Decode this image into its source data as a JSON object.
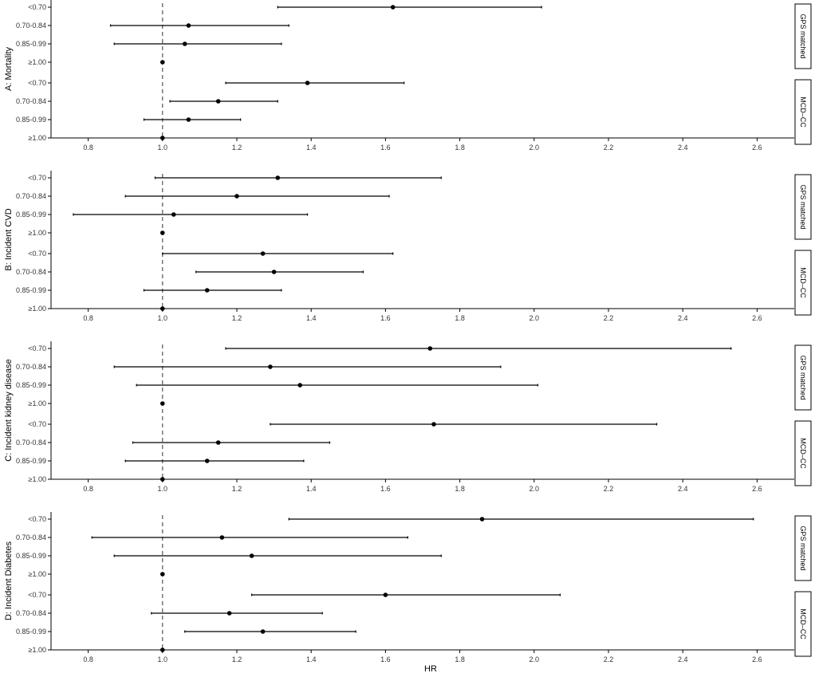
{
  "chart_data": {
    "type": "forest",
    "x_label": "HR",
    "x_range": [
      0.7,
      2.7
    ],
    "x_ticks": [
      "0.8",
      "1.0",
      "1.2",
      "1.4",
      "1.6",
      "1.8",
      "2.0",
      "2.2",
      "2.4",
      "2.6"
    ],
    "reference_line": 1.0,
    "categories": [
      "<0.70",
      "0.70-0.84",
      "0.85-0.99",
      "≥1.00"
    ],
    "panels": [
      {
        "label": "A: Mortality",
        "groups": [
          {
            "strip": "GPS matched",
            "points": [
              {
                "category": "<0.70",
                "hr": 1.62,
                "lo": 1.31,
                "hi": 2.02
              },
              {
                "category": "0.70-0.84",
                "hr": 1.07,
                "lo": 0.86,
                "hi": 1.34
              },
              {
                "category": "0.85-0.99",
                "hr": 1.06,
                "lo": 0.87,
                "hi": 1.32
              },
              {
                "category": "≥1.00",
                "hr": 1.0,
                "lo": 1.0,
                "hi": 1.0
              }
            ]
          },
          {
            "strip": "MCD–CC",
            "points": [
              {
                "category": "<0.70",
                "hr": 1.39,
                "lo": 1.17,
                "hi": 1.65
              },
              {
                "category": "0.70-0.84",
                "hr": 1.15,
                "lo": 1.02,
                "hi": 1.31
              },
              {
                "category": "0.85-0.99",
                "hr": 1.07,
                "lo": 0.95,
                "hi": 1.21
              },
              {
                "category": "≥1.00",
                "hr": 1.0,
                "lo": 1.0,
                "hi": 1.0
              }
            ]
          }
        ]
      },
      {
        "label": "B: Incident CVD",
        "groups": [
          {
            "strip": "GPS matched",
            "points": [
              {
                "category": "<0.70",
                "hr": 1.31,
                "lo": 0.98,
                "hi": 1.75
              },
              {
                "category": "0.70-0.84",
                "hr": 1.2,
                "lo": 0.9,
                "hi": 1.61
              },
              {
                "category": "0.85-0.99",
                "hr": 1.03,
                "lo": 0.76,
                "hi": 1.39
              },
              {
                "category": "≥1.00",
                "hr": 1.0,
                "lo": 1.0,
                "hi": 1.0
              }
            ]
          },
          {
            "strip": "MCD–CC",
            "points": [
              {
                "category": "<0.70",
                "hr": 1.27,
                "lo": 1.0,
                "hi": 1.62
              },
              {
                "category": "0.70-0.84",
                "hr": 1.3,
                "lo": 1.09,
                "hi": 1.54
              },
              {
                "category": "0.85-0.99",
                "hr": 1.12,
                "lo": 0.95,
                "hi": 1.32
              },
              {
                "category": "≥1.00",
                "hr": 1.0,
                "lo": 1.0,
                "hi": 1.0
              }
            ]
          }
        ]
      },
      {
        "label": "C: Incident kidney disease",
        "groups": [
          {
            "strip": "GPS matched",
            "points": [
              {
                "category": "<0.70",
                "hr": 1.72,
                "lo": 1.17,
                "hi": 2.53
              },
              {
                "category": "0.70-0.84",
                "hr": 1.29,
                "lo": 0.87,
                "hi": 1.91
              },
              {
                "category": "0.85-0.99",
                "hr": 1.37,
                "lo": 0.93,
                "hi": 2.01
              },
              {
                "category": "≥1.00",
                "hr": 1.0,
                "lo": 1.0,
                "hi": 1.0
              }
            ]
          },
          {
            "strip": "MCD–CC",
            "points": [
              {
                "category": "<0.70",
                "hr": 1.73,
                "lo": 1.29,
                "hi": 2.33
              },
              {
                "category": "0.70-0.84",
                "hr": 1.15,
                "lo": 0.92,
                "hi": 1.45
              },
              {
                "category": "0.85-0.99",
                "hr": 1.12,
                "lo": 0.9,
                "hi": 1.38
              },
              {
                "category": "≥1.00",
                "hr": 1.0,
                "lo": 1.0,
                "hi": 1.0
              }
            ]
          }
        ]
      },
      {
        "label": "D: Incident Diabetes",
        "groups": [
          {
            "strip": "GPS matched",
            "points": [
              {
                "category": "<0.70",
                "hr": 1.86,
                "lo": 1.34,
                "hi": 2.59
              },
              {
                "category": "0.70-0.84",
                "hr": 1.16,
                "lo": 0.81,
                "hi": 1.66
              },
              {
                "category": "0.85-0.99",
                "hr": 1.24,
                "lo": 0.87,
                "hi": 1.75
              },
              {
                "category": "≥1.00",
                "hr": 1.0,
                "lo": 1.0,
                "hi": 1.0
              }
            ]
          },
          {
            "strip": "MCD–CC",
            "points": [
              {
                "category": "<0.70",
                "hr": 1.6,
                "lo": 1.24,
                "hi": 2.07
              },
              {
                "category": "0.70-0.84",
                "hr": 1.18,
                "lo": 0.97,
                "hi": 1.43
              },
              {
                "category": "0.85-0.99",
                "hr": 1.27,
                "lo": 1.06,
                "hi": 1.52
              },
              {
                "category": "≥1.00",
                "hr": 1.0,
                "lo": 1.0,
                "hi": 1.0
              }
            ]
          }
        ]
      }
    ]
  }
}
